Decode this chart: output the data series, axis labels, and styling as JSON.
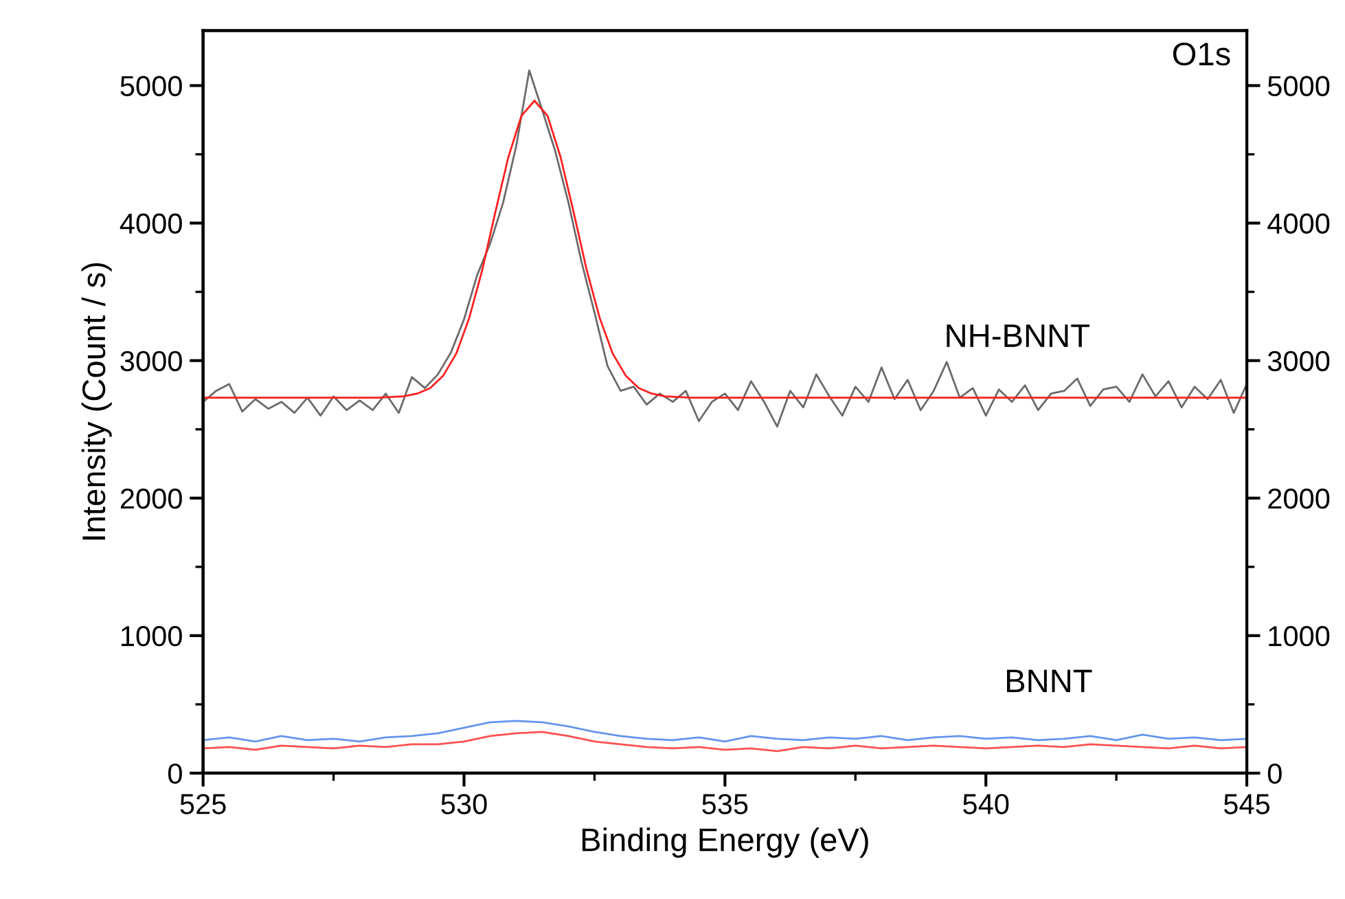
{
  "chart_data": {
    "type": "line",
    "xlabel": "Binding Energy (eV)",
    "ylabel": "Intensity (Count / s)",
    "xlim": [
      525,
      545
    ],
    "xticks": [
      525,
      {
        "value": 527.5,
        "label": null
      },
      530,
      {
        "value": 532.5,
        "label": null
      },
      535,
      {
        "value": 537.5,
        "label": null
      },
      540,
      {
        "value": 542.5,
        "label": null
      },
      545
    ],
    "ylim": [
      0,
      5400
    ],
    "yticks": [
      0,
      {
        "value": 500,
        "label": null
      },
      1000,
      {
        "value": 1500,
        "label": null
      },
      2000,
      {
        "value": 2500,
        "label": null
      },
      3000,
      {
        "value": 3500,
        "label": null
      },
      4000,
      {
        "value": 4500,
        "label": null
      },
      5000
    ],
    "y2lim": [
      0,
      5400
    ],
    "y2ticks": [
      0,
      {
        "value": 500,
        "label": null
      },
      1000,
      {
        "value": 1500,
        "label": null
      },
      2000,
      {
        "value": 2500,
        "label": null
      },
      3000,
      {
        "value": 3500,
        "label": null
      },
      4000,
      {
        "value": 4500,
        "label": null
      },
      5000
    ],
    "grid": false,
    "legend": false,
    "marker": "none",
    "line_style": "solid",
    "annotations": [
      "NH-BNNT",
      "BNNT",
      "O1s"
    ],
    "series": [
      {
        "color": "#6b6b6b",
        "x": [
          525,
          525.25,
          525.5,
          525.75,
          526,
          526.25,
          526.5,
          526.75,
          527,
          527.25,
          527.5,
          527.75,
          528,
          528.25,
          528.5,
          528.75,
          529,
          529.25,
          529.5,
          529.75,
          530,
          530.25,
          530.5,
          530.75,
          531,
          531.25,
          531.5,
          531.75,
          532,
          532.25,
          532.5,
          532.75,
          533,
          533.25,
          533.5,
          533.75,
          534,
          534.25,
          534.5,
          534.75,
          535,
          535.25,
          535.5,
          535.75,
          536,
          536.25,
          536.5,
          536.75,
          537,
          537.25,
          537.5,
          537.75,
          538,
          538.25,
          538.5,
          538.75,
          539,
          539.25,
          539.5,
          539.75,
          540,
          540.25,
          540.5,
          540.75,
          541,
          541.25,
          541.5,
          541.75,
          542,
          542.25,
          542.5,
          542.75,
          543,
          543.25,
          543.5,
          543.75,
          544,
          544.25,
          544.5,
          544.75,
          545
        ],
        "values": [
          2700,
          2780,
          2830,
          2630,
          2720,
          2650,
          2700,
          2620,
          2730,
          2600,
          2740,
          2640,
          2710,
          2640,
          2760,
          2620,
          2880,
          2800,
          2900,
          3060,
          3300,
          3620,
          3850,
          4150,
          4560,
          5110,
          4820,
          4520,
          4150,
          3720,
          3350,
          2960,
          2780,
          2810,
          2680,
          2760,
          2700,
          2780,
          2560,
          2700,
          2760,
          2640,
          2850,
          2700,
          2520,
          2780,
          2660,
          2900,
          2740,
          2600,
          2810,
          2700,
          2950,
          2720,
          2860,
          2640,
          2780,
          2990,
          2730,
          2800,
          2600,
          2790,
          2700,
          2820,
          2640,
          2760,
          2780,
          2870,
          2670,
          2790,
          2810,
          2700,
          2900,
          2740,
          2850,
          2660,
          2810,
          2720,
          2860,
          2620,
          2830
        ]
      },
      {
        "color": "#ff2020",
        "x": [
          525,
          528.35,
          528.85,
          529.1,
          529.35,
          529.6,
          529.85,
          530.1,
          530.35,
          530.6,
          530.85,
          531.1,
          531.35,
          531.6,
          531.85,
          532.1,
          532.35,
          532.6,
          532.85,
          533.1,
          533.35,
          533.6,
          533.85,
          534.35,
          545
        ],
        "values": [
          2730,
          2730,
          2740,
          2760,
          2800,
          2890,
          3050,
          3310,
          3660,
          4080,
          4480,
          4780,
          4890,
          4780,
          4480,
          4080,
          3660,
          3310,
          3050,
          2890,
          2800,
          2760,
          2740,
          2730,
          2730
        ]
      },
      {
        "color": "#6495ed",
        "x": [
          525,
          525.5,
          526,
          526.5,
          527,
          527.5,
          528,
          528.5,
          529,
          529.5,
          530,
          530.5,
          531,
          531.5,
          532,
          532.5,
          533,
          533.5,
          534,
          534.5,
          535,
          535.5,
          536,
          536.5,
          537,
          537.5,
          538,
          538.5,
          539,
          539.5,
          540,
          540.5,
          541,
          541.5,
          542,
          542.5,
          543,
          543.5,
          544,
          544.5,
          545
        ],
        "values": [
          240,
          260,
          230,
          270,
          240,
          250,
          230,
          260,
          270,
          290,
          330,
          370,
          380,
          370,
          340,
          300,
          270,
          250,
          240,
          260,
          230,
          270,
          250,
          240,
          260,
          250,
          270,
          240,
          260,
          270,
          250,
          260,
          240,
          250,
          270,
          240,
          280,
          250,
          260,
          240,
          250
        ]
      },
      {
        "color": "#ff5050",
        "x": [
          525,
          525.5,
          526,
          526.5,
          527,
          527.5,
          528,
          528.5,
          529,
          529.5,
          530,
          530.5,
          531,
          531.5,
          532,
          532.5,
          533,
          533.5,
          534,
          534.5,
          535,
          535.5,
          536,
          536.5,
          537,
          537.5,
          538,
          538.5,
          539,
          539.5,
          540,
          540.5,
          541,
          541.5,
          542,
          542.5,
          543,
          543.5,
          544,
          544.5,
          545
        ],
        "values": [
          180,
          190,
          170,
          200,
          190,
          180,
          200,
          190,
          210,
          210,
          230,
          270,
          290,
          300,
          270,
          230,
          210,
          190,
          180,
          190,
          170,
          180,
          160,
          190,
          180,
          200,
          180,
          190,
          200,
          190,
          180,
          190,
          200,
          190,
          210,
          200,
          190,
          180,
          200,
          180,
          190
        ]
      }
    ]
  }
}
